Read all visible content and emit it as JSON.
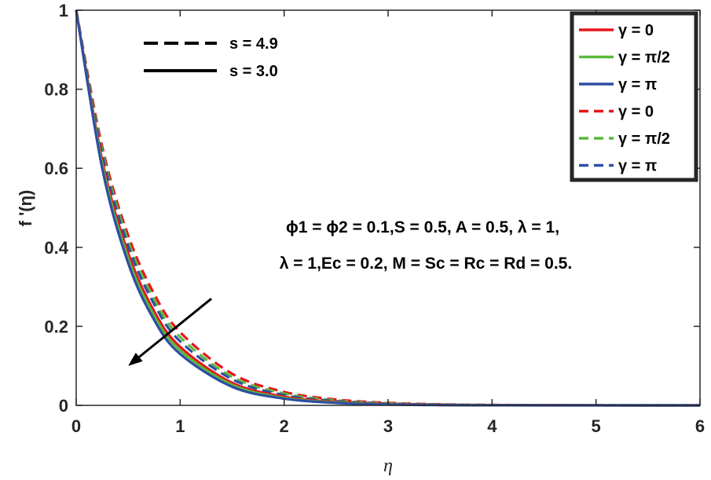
{
  "chart_data": {
    "type": "line",
    "xlabel": "η",
    "ylabel": "f '(η)",
    "xlim": [
      0,
      6
    ],
    "ylim": [
      0,
      1
    ],
    "xticks": [
      "0",
      "1",
      "2",
      "3",
      "4",
      "5",
      "6"
    ],
    "yticks": [
      "0",
      "0.2",
      "0.4",
      "0.6",
      "0.8",
      "1"
    ],
    "grid": false,
    "legend_position": "top-right",
    "x": [
      0,
      0.25,
      0.5,
      0.75,
      1,
      1.5,
      2,
      2.5,
      3,
      3.5,
      4,
      5,
      6
    ],
    "series": [
      {
        "name": "γ = 0",
        "color": "#e8141b",
        "dash": "solid",
        "s": "3.0",
        "values": [
          1.0,
          0.62,
          0.385,
          0.238,
          0.148,
          0.057,
          0.022,
          0.0085,
          0.0033,
          0.0013,
          0.0005,
          0.0001,
          0.0
        ]
      },
      {
        "name": "γ = π/2",
        "color": "#59b93a",
        "dash": "solid",
        "s": "3.0",
        "values": [
          1.0,
          0.61,
          0.372,
          0.227,
          0.139,
          0.052,
          0.019,
          0.0072,
          0.0027,
          0.001,
          0.0004,
          0.0001,
          0.0
        ]
      },
      {
        "name": "γ = π",
        "color": "#2e4ea2",
        "dash": "solid",
        "s": "3.0",
        "values": [
          1.0,
          0.6,
          0.36,
          0.216,
          0.13,
          0.047,
          0.017,
          0.0061,
          0.0022,
          0.0008,
          0.0003,
          0.0,
          0.0
        ]
      },
      {
        "name": "γ = 0",
        "color": "#e8141b",
        "dash": "dashed",
        "s": "4.9",
        "values": [
          1.0,
          0.655,
          0.43,
          0.282,
          0.185,
          0.08,
          0.034,
          0.0148,
          0.0064,
          0.0027,
          0.0012,
          0.0002,
          0.0
        ]
      },
      {
        "name": "γ = π/2",
        "color": "#59b93a",
        "dash": "dashed",
        "s": "4.9",
        "values": [
          1.0,
          0.645,
          0.416,
          0.268,
          0.173,
          0.072,
          0.03,
          0.0125,
          0.0052,
          0.0022,
          0.0009,
          0.0002,
          0.0
        ]
      },
      {
        "name": "γ = π",
        "color": "#2e4ea2",
        "dash": "dashed",
        "s": "4.9",
        "values": [
          1.0,
          0.635,
          0.403,
          0.256,
          0.162,
          0.066,
          0.026,
          0.0106,
          0.0043,
          0.0017,
          0.0007,
          0.0001,
          0.0
        ]
      }
    ],
    "style_legend": [
      {
        "label": "s = 4.9",
        "dash": "dashed"
      },
      {
        "label": "s = 3.0",
        "dash": "solid"
      }
    ],
    "annotation": {
      "line1": "ϕ1 = ϕ2 = 0.1,S = 0.5, A = 0.5, λ = 1,",
      "line2": "λ = 1,Ec = 0.2, M = Sc = Rc = Rd = 0.5.",
      "arrow": {
        "from": [
          1.3,
          0.27
        ],
        "to": [
          0.5,
          0.1
        ]
      }
    }
  }
}
